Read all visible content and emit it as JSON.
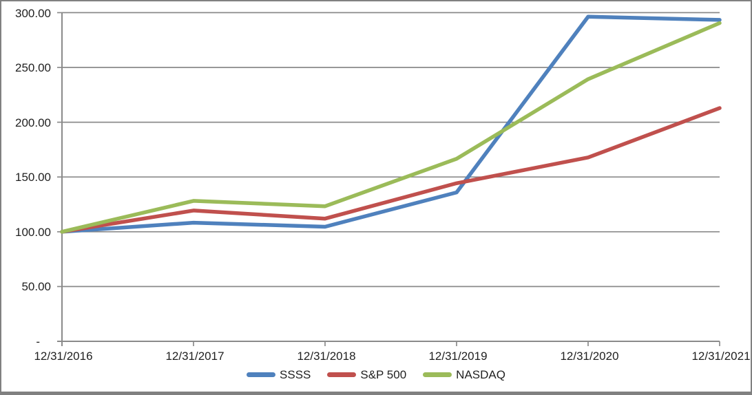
{
  "chart": {
    "background": "#FFFFFF",
    "border_color": "#808080",
    "gridline_color": "#8A8A8A",
    "axis_color": "#8A8A8A",
    "text_color": "#1F1F1F"
  },
  "chart_data": {
    "type": "line",
    "title": "",
    "xlabel": "",
    "ylabel": "",
    "x_labels": [
      "12/31/2016",
      "12/31/2017",
      "12/31/2018",
      "12/31/2019",
      "12/31/2020",
      "12/31/2021"
    ],
    "y_ticks": [
      {
        "value": 300,
        "label": "300.00"
      },
      {
        "value": 250,
        "label": "250.00"
      },
      {
        "value": 200,
        "label": "200.00"
      },
      {
        "value": 150,
        "label": "150.00"
      },
      {
        "value": 100,
        "label": "100.00"
      },
      {
        "value": 50,
        "label": "50.00"
      },
      {
        "value": 0,
        "label": "-"
      }
    ],
    "ylim": [
      0,
      300
    ],
    "grid": true,
    "legend_position": "bottom",
    "series": [
      {
        "name": "SSSS",
        "color": "#4F81BD",
        "values": [
          100.0,
          108.3,
          104.6,
          135.9,
          296.3,
          293.4
        ]
      },
      {
        "name": "S&P 500",
        "color": "#C0504D",
        "values": [
          100.0,
          119.4,
          112.0,
          144.3,
          167.8,
          212.9
        ]
      },
      {
        "name": "NASDAQ",
        "color": "#9BBB59",
        "values": [
          100.0,
          128.2,
          123.3,
          166.6,
          239.3,
          290.5
        ]
      }
    ]
  }
}
